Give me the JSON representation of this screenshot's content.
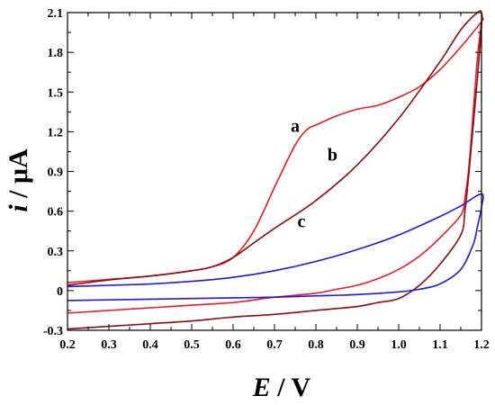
{
  "chart_data": {
    "type": "line",
    "title": "",
    "xlabel": {
      "var": "E",
      "unit": " / V"
    },
    "ylabel": {
      "var": "i",
      "unit": " / μA"
    },
    "xlim": [
      0.2,
      1.2
    ],
    "ylim": [
      -0.3,
      2.1
    ],
    "x_ticks": [
      0.2,
      0.3,
      0.4,
      0.5,
      0.6,
      0.7,
      0.8,
      0.9,
      1.0,
      1.1,
      1.2
    ],
    "x_tick_labels": [
      "0.2",
      "0.3",
      "0.4",
      "0.5",
      "0.6",
      "0.7",
      "0.8",
      "0.9",
      "1.0",
      "1.1",
      "1.2"
    ],
    "y_ticks": [
      -0.3,
      0,
      0.3,
      0.6,
      0.9,
      1.2,
      1.5,
      1.8,
      2.1
    ],
    "y_tick_labels": [
      "-0.3",
      "0",
      "0.3",
      "0.6",
      "0.9",
      "1.2",
      "1.5",
      "1.8",
      "2.1"
    ],
    "grid": false,
    "series": [
      {
        "label": "a",
        "label_position": {
          "x": 0.75,
          "y": 1.2
        },
        "color": "#ee1c25",
        "x": [
          0.2,
          0.3,
          0.4,
          0.5,
          0.55,
          0.6,
          0.65,
          0.7,
          0.75,
          0.78,
          0.8,
          0.85,
          0.9,
          0.95,
          1.0,
          1.05,
          1.1,
          1.15,
          1.2,
          1.2,
          1.19,
          1.18,
          1.17,
          1.16,
          1.15,
          1.1,
          1.05,
          1.0,
          0.95,
          0.9,
          0.85,
          0.8,
          0.7,
          0.6,
          0.5,
          0.4,
          0.3,
          0.2
        ],
        "y": [
          0.06,
          0.085,
          0.11,
          0.15,
          0.18,
          0.25,
          0.45,
          0.78,
          1.1,
          1.22,
          1.25,
          1.32,
          1.37,
          1.4,
          1.46,
          1.54,
          1.67,
          1.84,
          2.03,
          2.03,
          1.75,
          1.35,
          0.95,
          0.7,
          0.57,
          0.4,
          0.26,
          0.16,
          0.09,
          0.04,
          0.01,
          -0.02,
          -0.05,
          -0.09,
          -0.11,
          -0.13,
          -0.15,
          -0.17
        ]
      },
      {
        "label": "b",
        "label_position": {
          "x": 0.84,
          "y": 0.98
        },
        "color": "#8b0c12",
        "x": [
          0.2,
          0.3,
          0.4,
          0.5,
          0.55,
          0.6,
          0.65,
          0.7,
          0.8,
          0.9,
          1.0,
          1.1,
          1.15,
          1.19,
          1.2,
          1.2,
          1.19,
          1.18,
          1.17,
          1.16,
          1.15,
          1.1,
          1.05,
          1.0,
          0.95,
          0.9,
          0.8,
          0.7,
          0.6,
          0.5,
          0.4,
          0.3,
          0.2
        ],
        "y": [
          0.04,
          0.08,
          0.11,
          0.15,
          0.18,
          0.25,
          0.36,
          0.47,
          0.68,
          0.95,
          1.3,
          1.73,
          1.97,
          2.1,
          2.1,
          2.0,
          1.6,
          1.25,
          0.9,
          0.6,
          0.42,
          0.2,
          0.04,
          -0.06,
          -0.09,
          -0.12,
          -0.15,
          -0.18,
          -0.2,
          -0.23,
          -0.25,
          -0.27,
          -0.29
        ]
      },
      {
        "label": "c",
        "label_position": {
          "x": 0.765,
          "y": 0.48
        },
        "color": "#1a1ae0",
        "x": [
          0.2,
          0.3,
          0.4,
          0.5,
          0.6,
          0.7,
          0.8,
          0.9,
          1.0,
          1.1,
          1.15,
          1.2,
          1.2,
          1.19,
          1.18,
          1.15,
          1.1,
          1.05,
          1.0,
          0.9,
          0.8,
          0.7,
          0.6,
          0.5,
          0.4,
          0.3,
          0.2
        ],
        "y": [
          0.03,
          0.04,
          0.05,
          0.07,
          0.1,
          0.15,
          0.22,
          0.31,
          0.42,
          0.56,
          0.64,
          0.73,
          0.63,
          0.48,
          0.35,
          0.16,
          0.05,
          0.01,
          -0.01,
          -0.03,
          -0.04,
          -0.05,
          -0.055,
          -0.06,
          -0.065,
          -0.07,
          -0.075
        ]
      }
    ]
  }
}
